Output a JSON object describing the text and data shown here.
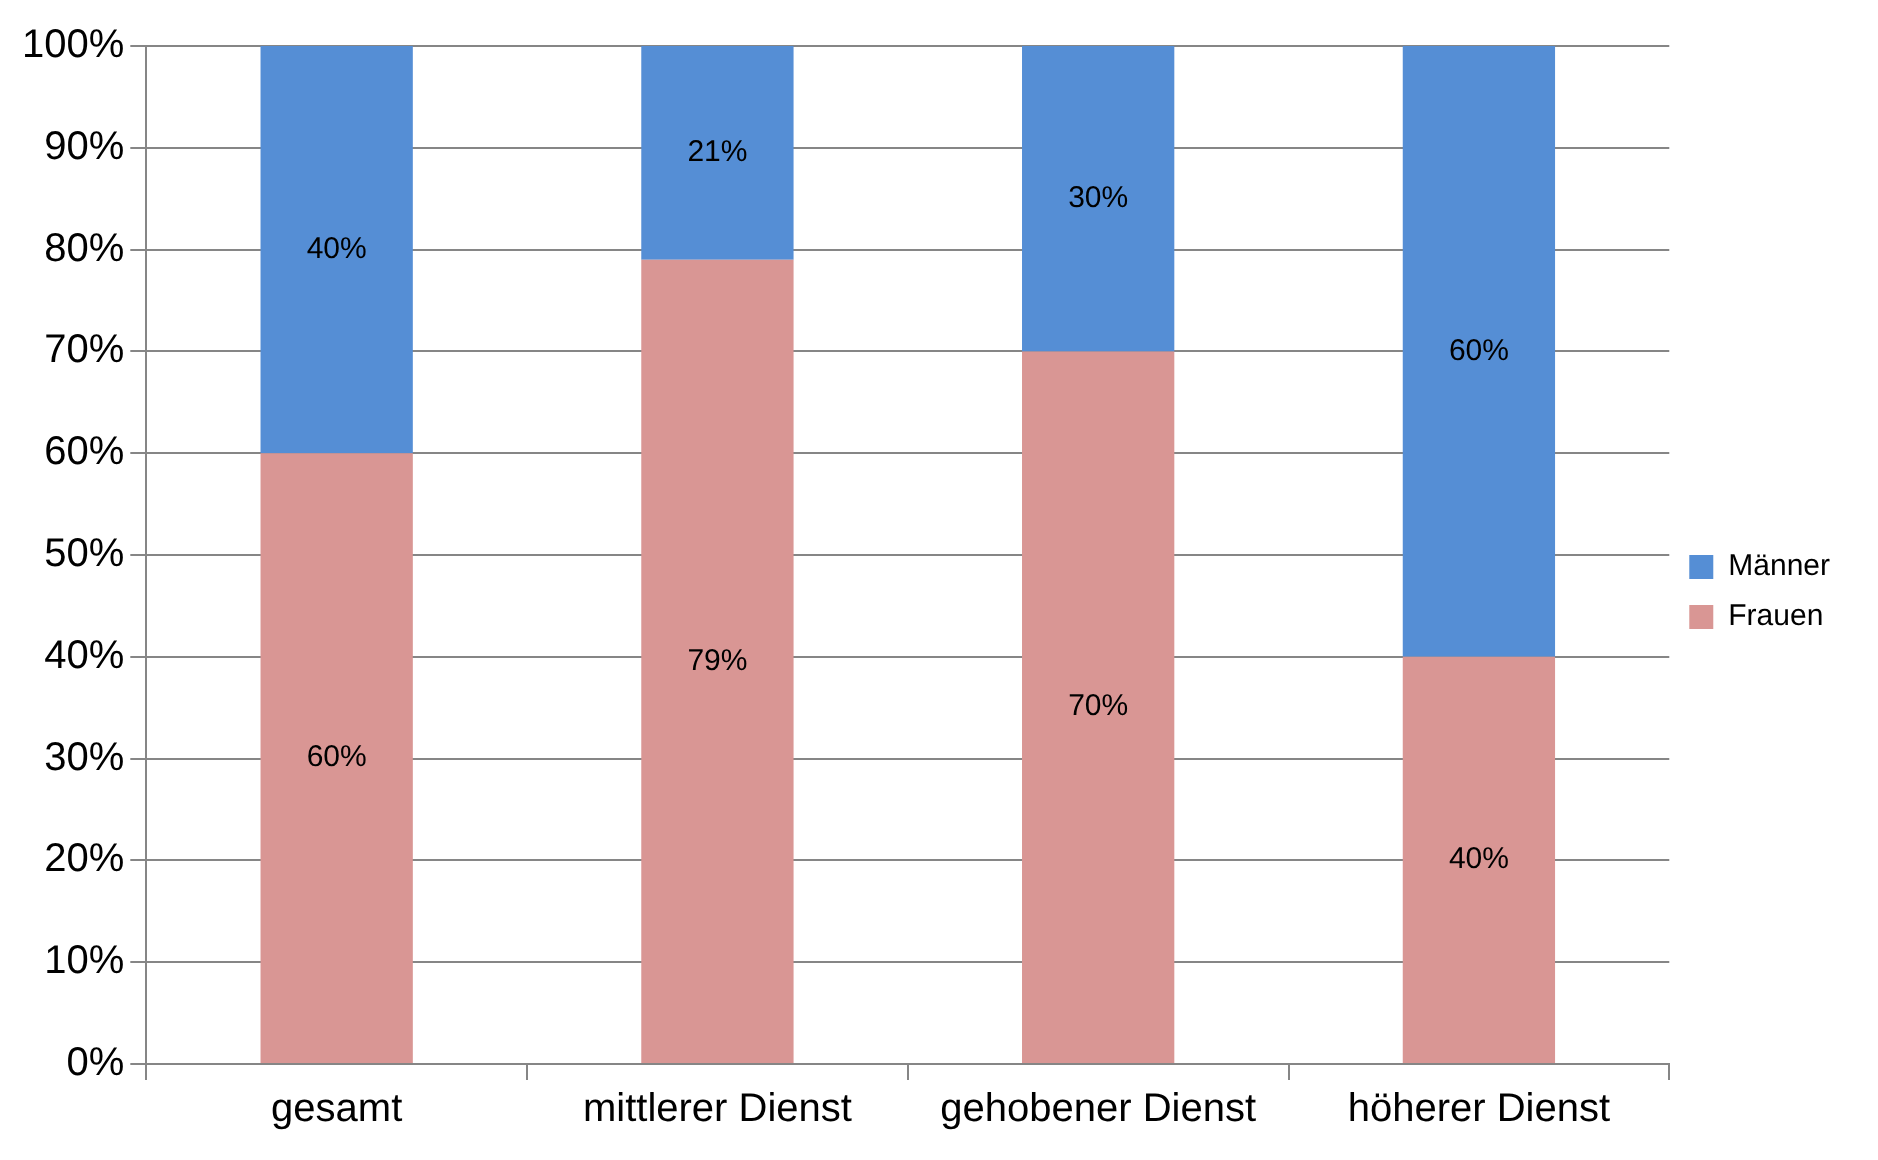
{
  "chart_data": {
    "type": "bar",
    "stacked": true,
    "categories": [
      "gesamt",
      "mittlerer Dienst",
      "gehobener Dienst",
      "höherer Dienst"
    ],
    "series": [
      {
        "name": "Frauen",
        "color": "#d99694",
        "values": [
          60,
          79,
          70,
          40
        ],
        "value_labels": [
          "60%",
          "79%",
          "70%",
          "40%"
        ]
      },
      {
        "name": "Männer",
        "color": "#558ed5",
        "values": [
          40,
          21,
          30,
          60
        ],
        "value_labels": [
          "40%",
          "21%",
          "30%",
          "60%"
        ]
      }
    ],
    "ylim": [
      0,
      100
    ],
    "yticks": [
      {
        "value": 0,
        "label": "0%"
      },
      {
        "value": 10,
        "label": "10%"
      },
      {
        "value": 20,
        "label": "20%"
      },
      {
        "value": 30,
        "label": "30%"
      },
      {
        "value": 40,
        "label": "40%"
      },
      {
        "value": 50,
        "label": "50%"
      },
      {
        "value": 60,
        "label": "60%"
      },
      {
        "value": 70,
        "label": "70%"
      },
      {
        "value": 80,
        "label": "80%"
      },
      {
        "value": 90,
        "label": "90%"
      },
      {
        "value": 100,
        "label": "100%"
      }
    ],
    "grid": "y",
    "legend": "right"
  }
}
